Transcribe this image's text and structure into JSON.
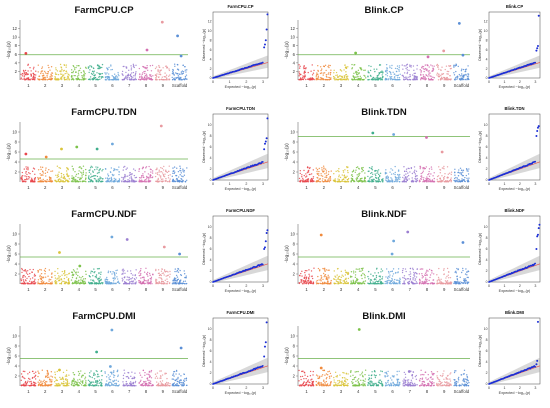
{
  "figure": {
    "chromosome_labels": [
      "1",
      "2",
      "3",
      "4",
      "5",
      "6",
      "7",
      "8",
      "9",
      "Scaffold"
    ],
    "chromosome_colors": [
      "#e8474c",
      "#f08a3c",
      "#d9c43a",
      "#7cc24a",
      "#3fae8c",
      "#6fa8dc",
      "#9b7fd1",
      "#d36fb0",
      "#e89aa0",
      "#5b8fd6"
    ],
    "qq_point_color": "#1c2fd6",
    "qq_line_color": "#e0534f",
    "qq_band_color": "#a9a9a9",
    "threshold_color": "#6ab04c"
  },
  "chart_data": [
    {
      "type": "scatter",
      "subtype": "manhattan",
      "title": "FarmCPU.CP",
      "ylabel": "-log₁₀(p)",
      "ylim": [
        0,
        14
      ],
      "threshold": 5.9,
      "yticks": [
        2,
        4,
        6,
        8,
        10,
        12
      ],
      "peaks": [
        {
          "chrom": "1",
          "y": 6.2
        },
        {
          "chrom": "8",
          "y": 7.0
        },
        {
          "chrom": "9",
          "y": 13.5
        },
        {
          "chrom": "Scaffold",
          "y": 10.3
        },
        {
          "chrom": "Scaffold",
          "y": 5.6
        }
      ]
    },
    {
      "type": "scatter",
      "subtype": "qq",
      "title": "FarmCPU.CP",
      "xlabel": "Expected −log₁₀(p)",
      "ylabel": "Observed −log₁₀(p)",
      "xlim": [
        0,
        3.3
      ],
      "ylim": [
        0,
        14
      ],
      "xticks": [
        0,
        1,
        2,
        3
      ],
      "yticks": [
        0,
        2,
        4,
        6,
        8,
        10,
        12
      ],
      "top_points": [
        6.5,
        7.1,
        8.0,
        10.3,
        13.5
      ]
    },
    {
      "type": "scatter",
      "subtype": "manhattan",
      "title": "Blink.CP",
      "ylabel": "-log₁₀(p)",
      "ylim": [
        0,
        14
      ],
      "threshold": 5.9,
      "yticks": [
        2,
        4,
        6,
        8,
        10,
        12
      ],
      "peaks": [
        {
          "chrom": "4",
          "y": 6.3
        },
        {
          "chrom": "8",
          "y": 5.4
        },
        {
          "chrom": "9",
          "y": 6.8
        },
        {
          "chrom": "Scaffold",
          "y": 13.2
        },
        {
          "chrom": "Scaffold",
          "y": 5.8
        }
      ]
    },
    {
      "type": "scatter",
      "subtype": "qq",
      "title": "Blink.CP",
      "xlabel": "Expected −log₁₀(p)",
      "ylabel": "Observed −log₁₀(p)",
      "xlim": [
        0,
        3.3
      ],
      "ylim": [
        0,
        14
      ],
      "xticks": [
        0,
        1,
        2,
        3
      ],
      "yticks": [
        0,
        2,
        4,
        6,
        8,
        10,
        12
      ],
      "top_points": [
        5.8,
        6.3,
        6.8,
        13.2
      ]
    },
    {
      "type": "scatter",
      "subtype": "manhattan",
      "title": "FarmCPU.TDN",
      "ylabel": "-log₁₀(p)",
      "ylim": [
        0,
        12
      ],
      "threshold": 4.6,
      "yticks": [
        2,
        4,
        6,
        8,
        10
      ],
      "peaks": [
        {
          "chrom": "1",
          "y": 5.6
        },
        {
          "chrom": "2",
          "y": 5.0
        },
        {
          "chrom": "3",
          "y": 6.6
        },
        {
          "chrom": "4",
          "y": 7.0
        },
        {
          "chrom": "5",
          "y": 6.6
        },
        {
          "chrom": "6",
          "y": 7.6
        },
        {
          "chrom": "9",
          "y": 11.2
        }
      ]
    },
    {
      "type": "scatter",
      "subtype": "qq",
      "title": "FarmCPU.TDN",
      "xlabel": "Expected −log₁₀(p)",
      "ylabel": "Observed −log₁₀(p)",
      "xlim": [
        0,
        3.3
      ],
      "ylim": [
        0,
        12
      ],
      "xticks": [
        0,
        1,
        2,
        3
      ],
      "yticks": [
        0,
        2,
        4,
        6,
        8,
        10
      ],
      "top_points": [
        5.6,
        6.6,
        7.0,
        7.6,
        11.2
      ]
    },
    {
      "type": "scatter",
      "subtype": "manhattan",
      "title": "Blink.TDN",
      "ylabel": "-log₁₀(p)",
      "ylim": [
        0,
        12
      ],
      "threshold": 9.1,
      "yticks": [
        2,
        4,
        6,
        8,
        10
      ],
      "peaks": [
        {
          "chrom": "5",
          "y": 9.8
        },
        {
          "chrom": "6",
          "y": 9.5
        },
        {
          "chrom": "8",
          "y": 8.9
        },
        {
          "chrom": "9",
          "y": 6.0
        }
      ]
    },
    {
      "type": "scatter",
      "subtype": "qq",
      "title": "Blink.TDN",
      "xlabel": "Expected −log₁₀(p)",
      "ylabel": "Observed −log₁₀(p)",
      "xlim": [
        0,
        3.3
      ],
      "ylim": [
        0,
        12
      ],
      "xticks": [
        0,
        1,
        2,
        3
      ],
      "yticks": [
        0,
        2,
        4,
        6,
        8,
        10
      ],
      "top_points": [
        8.0,
        8.9,
        9.5,
        9.8
      ]
    },
    {
      "type": "scatter",
      "subtype": "manhattan",
      "title": "FarmCPU.NDF",
      "ylabel": "-log₁₀(p)",
      "ylim": [
        0,
        12
      ],
      "threshold": 5.4,
      "yticks": [
        2,
        4,
        6,
        8,
        10
      ],
      "peaks": [
        {
          "chrom": "3",
          "y": 6.3
        },
        {
          "chrom": "4",
          "y": 3.6
        },
        {
          "chrom": "6",
          "y": 9.4
        },
        {
          "chrom": "7",
          "y": 8.9
        },
        {
          "chrom": "9",
          "y": 7.4
        },
        {
          "chrom": "Scaffold",
          "y": 6.0
        }
      ]
    },
    {
      "type": "scatter",
      "subtype": "qq",
      "title": "FarmCPU.NDF",
      "xlabel": "Expected −log₁₀(p)",
      "ylabel": "Observed −log₁₀(p)",
      "xlim": [
        0,
        3.3
      ],
      "ylim": [
        0,
        12
      ],
      "xticks": [
        0,
        1,
        2,
        3
      ],
      "yticks": [
        0,
        2,
        4,
        6,
        8,
        10
      ],
      "top_points": [
        6.0,
        6.3,
        7.4,
        8.9,
        9.4
      ]
    },
    {
      "type": "scatter",
      "subtype": "manhattan",
      "title": "Blink.NDF",
      "ylabel": "-log₁₀(p)",
      "ylim": [
        0,
        12
      ],
      "threshold": 5.4,
      "yticks": [
        2,
        4,
        6,
        8,
        10
      ],
      "peaks": [
        {
          "chrom": "2",
          "y": 9.8
        },
        {
          "chrom": "6",
          "y": 8.6
        },
        {
          "chrom": "6",
          "y": 6.0
        },
        {
          "chrom": "7",
          "y": 10.4
        },
        {
          "chrom": "Scaffold",
          "y": 8.3
        }
      ]
    },
    {
      "type": "scatter",
      "subtype": "qq",
      "title": "Blink.NDF",
      "xlabel": "Expected −log₁₀(p)",
      "ylabel": "Observed −log₁₀(p)",
      "xlim": [
        0,
        3.3
      ],
      "ylim": [
        0,
        12
      ],
      "xticks": [
        0,
        1,
        2,
        3
      ],
      "yticks": [
        0,
        2,
        4,
        6,
        8,
        10
      ],
      "top_points": [
        6.0,
        8.3,
        8.6,
        9.8,
        10.4
      ]
    },
    {
      "type": "scatter",
      "subtype": "manhattan",
      "title": "FarmCPU.DMI",
      "ylabel": "-log₁₀(p)",
      "ylim": [
        0,
        12
      ],
      "threshold": 5.5,
      "yticks": [
        2,
        4,
        6,
        8,
        10
      ],
      "peaks": [
        {
          "chrom": "3",
          "y": 3.2
        },
        {
          "chrom": "5",
          "y": 6.8
        },
        {
          "chrom": "6",
          "y": 11.2
        },
        {
          "chrom": "6",
          "y": 3.9
        },
        {
          "chrom": "Scaffold",
          "y": 7.6
        }
      ]
    },
    {
      "type": "scatter",
      "subtype": "qq",
      "title": "FarmCPU.DMI",
      "xlabel": "Expected −log₁₀(p)",
      "ylabel": "Observed −log₁₀(p)",
      "xlim": [
        0,
        3.3
      ],
      "ylim": [
        0,
        12
      ],
      "xticks": [
        0,
        1,
        2,
        3
      ],
      "yticks": [
        0,
        2,
        4,
        6,
        8,
        10
      ],
      "top_points": [
        5.0,
        6.8,
        7.6,
        11.2
      ]
    },
    {
      "type": "scatter",
      "subtype": "manhattan",
      "title": "Blink.DMI",
      "ylabel": "-log₁₀(p)",
      "ylim": [
        0,
        12
      ],
      "threshold": 5.5,
      "yticks": [
        2,
        4,
        6,
        8,
        10
      ],
      "peaks": [
        {
          "chrom": "2",
          "y": 3.6
        },
        {
          "chrom": "4",
          "y": 11.3
        },
        {
          "chrom": "7",
          "y": 2.9
        }
      ]
    },
    {
      "type": "scatter",
      "subtype": "qq",
      "title": "Blink.DMI",
      "xlabel": "Expected −log₁₀(p)",
      "ylabel": "Observed −log₁₀(p)",
      "xlim": [
        0,
        3.3
      ],
      "ylim": [
        0,
        12
      ],
      "xticks": [
        0,
        1,
        2,
        3
      ],
      "yticks": [
        0,
        2,
        4,
        6,
        8,
        10
      ],
      "top_points": [
        3.6,
        4.2,
        11.3
      ]
    }
  ]
}
